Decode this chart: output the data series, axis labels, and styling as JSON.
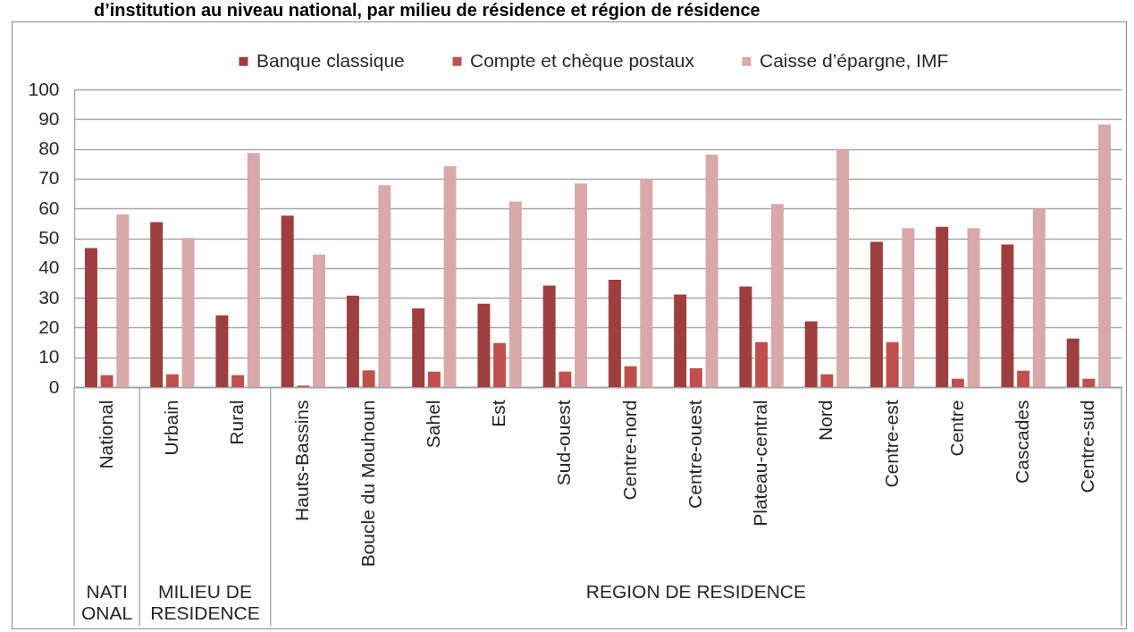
{
  "chart_data": {
    "type": "bar",
    "title": "d’institution au niveau national, par milieu de résidence et région de résidence",
    "categories": [
      "National",
      "Urbain",
      "Rural",
      "Hauts-Bassins",
      "Boucle du Mouhoun",
      "Sahel",
      "Est",
      "Sud-ouest",
      "Centre-nord",
      "Centre-ouest",
      "Plateau-central",
      "Nord",
      "Centre-est",
      "Centre",
      "Cascades",
      "Centre-sud"
    ],
    "series": [
      {
        "name": "Banque classique",
        "color": "#9e3f3f",
        "values": [
          46.7,
          55.4,
          24.1,
          57.6,
          30.7,
          26.4,
          28.0,
          34.1,
          36.0,
          31.1,
          33.8,
          22.1,
          48.8,
          53.8,
          47.9,
          16.3
        ]
      },
      {
        "name": "Compte et chèque postaux",
        "color": "#c0504d",
        "values": [
          4.0,
          4.3,
          4.0,
          0.5,
          5.6,
          5.2,
          14.8,
          5.2,
          7.0,
          6.3,
          15.1,
          4.3,
          15.1,
          2.8,
          5.5,
          2.8
        ]
      },
      {
        "name": "Caisse d’épargne, IMF",
        "color": "#d9a9a9",
        "values": [
          58.0,
          50.1,
          78.6,
          44.5,
          67.8,
          74.2,
          62.3,
          68.4,
          70.0,
          78.1,
          61.5,
          79.7,
          53.4,
          53.4,
          59.8,
          88.2
        ]
      }
    ],
    "ylim": [
      0,
      100
    ],
    "yticks": [
      0,
      10,
      20,
      30,
      40,
      50,
      60,
      70,
      80,
      90,
      100
    ],
    "grid": "y",
    "legend": "top",
    "annotations": [
      "NATI\nONAL",
      "MILIEU DE\nRESIDENCE",
      "REGION DE RESIDENCE"
    ]
  }
}
